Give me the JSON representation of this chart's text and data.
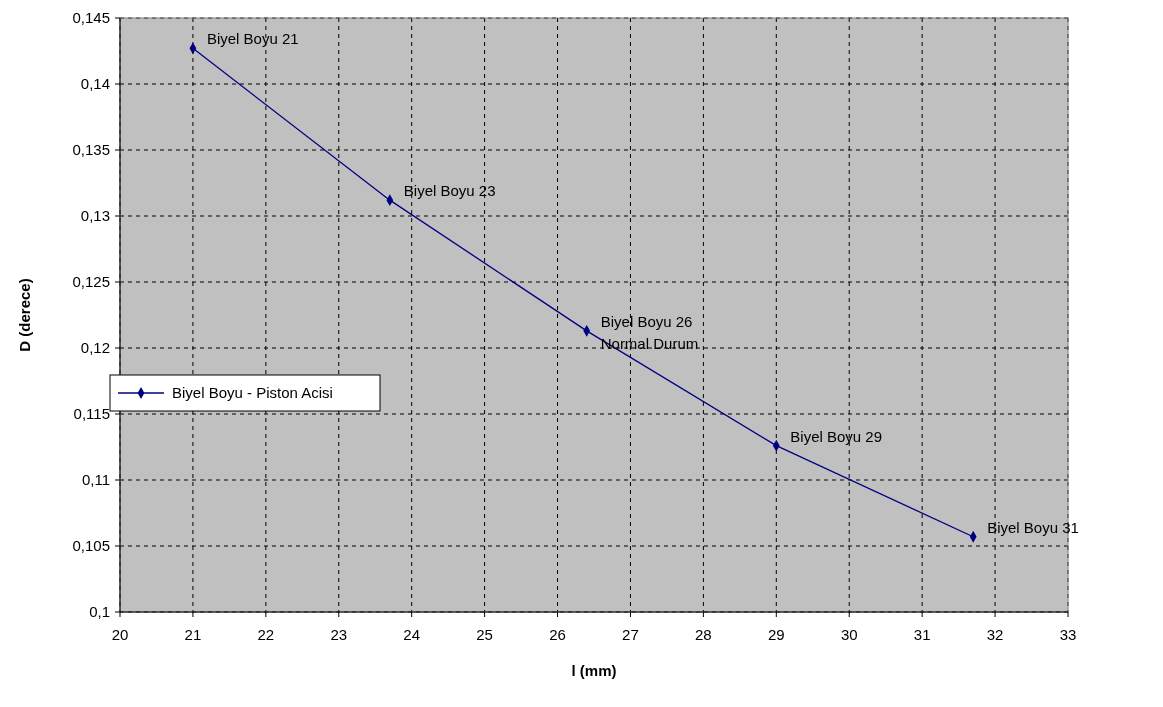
{
  "chart_data": {
    "type": "line",
    "xlabel": "l (mm)",
    "ylabel": "D (derece)",
    "x": [
      21.0,
      23.7,
      26.4,
      29.0,
      31.7
    ],
    "series": [
      {
        "name": "Biyel Boyu - Piston Acisi",
        "color": "#000080",
        "values": [
          0.1427,
          0.1312,
          0.1213,
          0.1126,
          0.1057
        ]
      }
    ],
    "xlim": [
      20,
      33
    ],
    "xticks": [
      20,
      21,
      22,
      23,
      24,
      25,
      26,
      27,
      28,
      29,
      30,
      31,
      32,
      33
    ],
    "ylim": [
      0.1,
      0.145
    ],
    "yticks": [
      {
        "value": 0.1,
        "label": "0,1"
      },
      {
        "value": 0.105,
        "label": "0,105"
      },
      {
        "value": 0.11,
        "label": "0,11"
      },
      {
        "value": 0.115,
        "label": "0,115"
      },
      {
        "value": 0.12,
        "label": "0,12"
      },
      {
        "value": 0.125,
        "label": "0,125"
      },
      {
        "value": 0.13,
        "label": "0,13"
      },
      {
        "value": 0.135,
        "label": "0,135"
      },
      {
        "value": 0.14,
        "label": "0,14"
      },
      {
        "value": 0.145,
        "label": "0,145"
      }
    ],
    "annotations": [
      {
        "text": "Biyel Boyu 21",
        "x": 21.0,
        "y": 0.1427
      },
      {
        "text": "Biyel Boyu 23",
        "x": 23.7,
        "y": 0.1312
      },
      {
        "text": "Biyel Boyu 26",
        "x": 26.4,
        "y": 0.1213
      },
      {
        "text": "Normal Durum",
        "x": 26.4,
        "y": 0.1213
      },
      {
        "text": "Biyel Boyu 29",
        "x": 29.0,
        "y": 0.1126
      },
      {
        "text": "Biyel Boyu 31",
        "x": 31.7,
        "y": 0.1057
      }
    ],
    "grid": true,
    "legend": "left",
    "marker": "diamond",
    "line_style": "solid"
  }
}
